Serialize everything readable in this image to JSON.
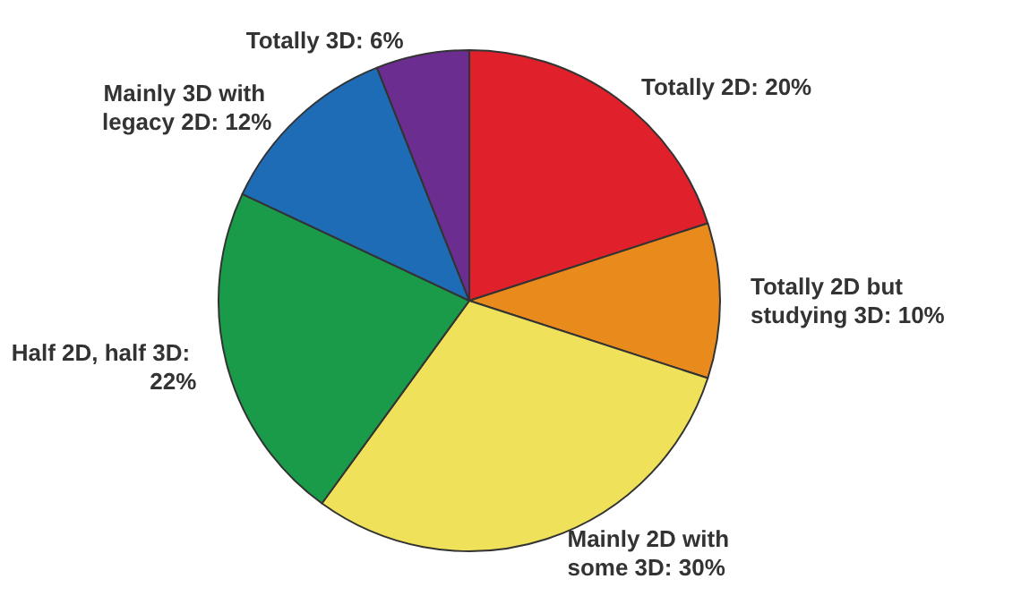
{
  "chart_data": {
    "type": "pie",
    "categories": [
      "Totally 2D: 20%",
      "Totally 2D but studying 3D: 10%",
      "Mainly 2D with some 3D: 30%",
      "Half 2D, half 3D: 22%",
      "Mainly 3D with legacy 2D: 12%",
      "Totally 3D: 6%"
    ],
    "values": [
      20,
      10,
      30,
      22,
      12,
      6
    ],
    "colors": [
      "#e0212b",
      "#e98a1c",
      "#efe15a",
      "#1a9b4a",
      "#1f6cb6",
      "#6b2d8f"
    ],
    "legend": false
  }
}
